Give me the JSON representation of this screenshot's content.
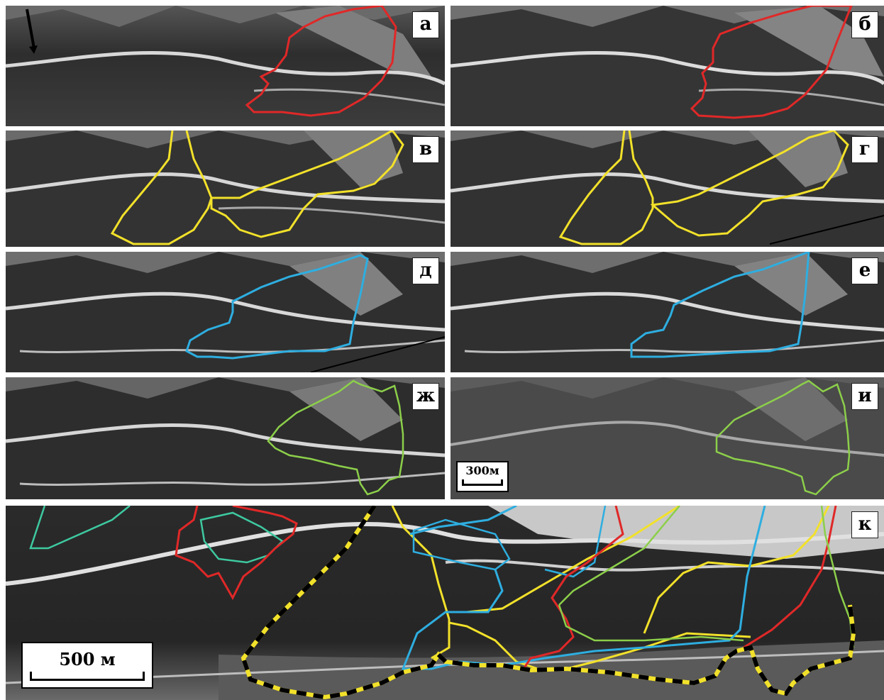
{
  "panels": {
    "a": {
      "label": "а"
    },
    "b": {
      "label": "б"
    },
    "v": {
      "label": "в"
    },
    "g": {
      "label": "г"
    },
    "d": {
      "label": "д"
    },
    "e": {
      "label": "е"
    },
    "zh": {
      "label": "ж"
    },
    "i": {
      "label": "и"
    },
    "k": {
      "label": "к"
    }
  },
  "scale_small": "300м",
  "scale_large": "500 м",
  "colors": {
    "red": "#e02828",
    "yellow": "#f2e12a",
    "blue": "#2eaee0",
    "green": "#8ccf4a",
    "teal": "#3ec9a0",
    "black": "#000000"
  }
}
